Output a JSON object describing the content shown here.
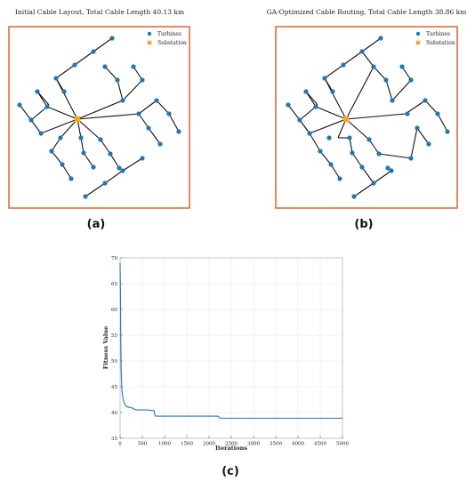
{
  "panels": {
    "a": {
      "label": "(a)",
      "title": "Initial Cable Layout, Total Cable Length 40.13 km",
      "legend": [
        "Turbines",
        "Substation"
      ]
    },
    "b": {
      "label": "(b)",
      "title": "GA-Optimized Cable Routing, Total Cable Length 38.86 km",
      "legend": [
        "Turbines",
        "Substation"
      ]
    },
    "c": {
      "label": "(c)",
      "xlabel": "Iterations",
      "ylabel": "Fitness Value"
    }
  },
  "colors": {
    "turbine": "#1f77b4",
    "substation": "#f5a623",
    "cable": "#111111",
    "frame": "#e2622f",
    "line": "#1f77b4",
    "grid": "#e6e6e6"
  },
  "chart_data": [
    {
      "type": "scatter",
      "title": "Initial Cable Layout, Total Cable Length 40.13 km",
      "legend_position": "top-right",
      "series": [
        {
          "name": "Turbines",
          "points": [
            [
              126,
              43
            ],
            [
              105,
              58
            ],
            [
              84,
              73
            ],
            [
              63,
              88
            ],
            [
              72,
              103
            ],
            [
              118,
              75
            ],
            [
              132,
              90
            ],
            [
              138,
              113
            ],
            [
              150,
              75
            ],
            [
              160,
              90
            ],
            [
              42,
              103
            ],
            [
              22,
              118
            ],
            [
              53,
              120
            ],
            [
              35,
              135
            ],
            [
              46,
              150
            ],
            [
              68,
              155
            ],
            [
              58,
              170
            ],
            [
              70,
              185
            ],
            [
              80,
              201
            ],
            [
              91,
              155
            ],
            [
              94,
              172
            ],
            [
              105,
              188
            ],
            [
              113,
              157
            ],
            [
              124,
              173
            ],
            [
              134,
              189
            ],
            [
              176,
              113
            ],
            [
              190,
              128
            ],
            [
              201,
              148
            ],
            [
              156,
              128
            ],
            [
              167,
              144
            ],
            [
              180,
              162
            ],
            [
              160,
              178
            ],
            [
              138,
              192
            ],
            [
              118,
              206
            ],
            [
              96,
              221
            ]
          ]
        },
        {
          "name": "Substation",
          "points": [
            [
              87,
              134
            ]
          ]
        }
      ],
      "edges": [
        [
          [
            87,
            134
          ],
          [
            63,
            88
          ]
        ],
        [
          [
            63,
            88
          ],
          [
            84,
            73
          ]
        ],
        [
          [
            84,
            73
          ],
          [
            105,
            58
          ]
        ],
        [
          [
            105,
            58
          ],
          [
            126,
            43
          ]
        ],
        [
          [
            63,
            88
          ],
          [
            72,
            103
          ]
        ],
        [
          [
            87,
            134
          ],
          [
            138,
            113
          ]
        ],
        [
          [
            138,
            113
          ],
          [
            132,
            90
          ]
        ],
        [
          [
            132,
            90
          ],
          [
            118,
            75
          ]
        ],
        [
          [
            138,
            113
          ],
          [
            160,
            90
          ]
        ],
        [
          [
            160,
            90
          ],
          [
            150,
            75
          ]
        ],
        [
          [
            87,
            134
          ],
          [
            53,
            120
          ]
        ],
        [
          [
            53,
            120
          ],
          [
            42,
            103
          ]
        ],
        [
          [
            42,
            103
          ],
          [
            55,
            118
          ]
        ],
        [
          [
            53,
            120
          ],
          [
            35,
            135
          ]
        ],
        [
          [
            35,
            135
          ],
          [
            22,
            118
          ]
        ],
        [
          [
            35,
            135
          ],
          [
            46,
            150
          ]
        ],
        [
          [
            46,
            150
          ],
          [
            87,
            134
          ]
        ],
        [
          [
            87,
            134
          ],
          [
            68,
            155
          ]
        ],
        [
          [
            68,
            155
          ],
          [
            58,
            170
          ]
        ],
        [
          [
            58,
            170
          ],
          [
            70,
            185
          ]
        ],
        [
          [
            70,
            185
          ],
          [
            80,
            201
          ]
        ],
        [
          [
            87,
            134
          ],
          [
            91,
            155
          ]
        ],
        [
          [
            91,
            155
          ],
          [
            94,
            172
          ]
        ],
        [
          [
            94,
            172
          ],
          [
            105,
            188
          ]
        ],
        [
          [
            87,
            134
          ],
          [
            113,
            157
          ]
        ],
        [
          [
            113,
            157
          ],
          [
            124,
            173
          ]
        ],
        [
          [
            124,
            173
          ],
          [
            134,
            189
          ]
        ],
        [
          [
            87,
            134
          ],
          [
            156,
            128
          ]
        ],
        [
          [
            156,
            128
          ],
          [
            176,
            113
          ]
        ],
        [
          [
            176,
            113
          ],
          [
            190,
            128
          ]
        ],
        [
          [
            190,
            128
          ],
          [
            201,
            148
          ]
        ],
        [
          [
            156,
            128
          ],
          [
            167,
            144
          ]
        ],
        [
          [
            167,
            144
          ],
          [
            180,
            162
          ]
        ],
        [
          [
            160,
            178
          ],
          [
            138,
            192
          ]
        ],
        [
          [
            138,
            192
          ],
          [
            118,
            206
          ]
        ],
        [
          [
            118,
            206
          ],
          [
            96,
            221
          ]
        ]
      ]
    },
    {
      "type": "scatter",
      "title": "GA-Optimized Cable Routing, Total Cable Length 38.86 km",
      "legend_position": "top-right",
      "series": [
        {
          "name": "Turbines",
          "points": [
            [
              428,
              43
            ],
            [
              407,
              58
            ],
            [
              386,
              73
            ],
            [
              365,
              88
            ],
            [
              374,
              103
            ],
            [
              420,
              75
            ],
            [
              434,
              90
            ],
            [
              441,
              113
            ],
            [
              452,
              75
            ],
            [
              462,
              90
            ],
            [
              344,
              103
            ],
            [
              324,
              118
            ],
            [
              355,
              120
            ],
            [
              337,
              135
            ],
            [
              348,
              150
            ],
            [
              370,
              155
            ],
            [
              360,
              170
            ],
            [
              372,
              185
            ],
            [
              382,
              201
            ],
            [
              393,
              155
            ],
            [
              396,
              172
            ],
            [
              407,
              188
            ],
            [
              415,
              157
            ],
            [
              426,
              173
            ],
            [
              436,
              189
            ],
            [
              478,
              113
            ],
            [
              492,
              128
            ],
            [
              503,
              148
            ],
            [
              458,
              128
            ],
            [
              469,
              144
            ],
            [
              482,
              162
            ],
            [
              462,
              178
            ],
            [
              440,
              192
            ],
            [
              420,
              206
            ],
            [
              398,
              221
            ]
          ]
        },
        {
          "name": "Substation",
          "points": [
            [
              389,
              134
            ]
          ]
        }
      ],
      "edges": [
        [
          [
            389,
            134
          ],
          [
            365,
            88
          ]
        ],
        [
          [
            365,
            88
          ],
          [
            386,
            73
          ]
        ],
        [
          [
            386,
            73
          ],
          [
            407,
            58
          ]
        ],
        [
          [
            407,
            58
          ],
          [
            428,
            43
          ]
        ],
        [
          [
            365,
            88
          ],
          [
            374,
            103
          ]
        ],
        [
          [
            389,
            134
          ],
          [
            420,
            75
          ]
        ],
        [
          [
            420,
            75
          ],
          [
            407,
            58
          ]
        ],
        [
          [
            420,
            75
          ],
          [
            434,
            90
          ]
        ],
        [
          [
            434,
            90
          ],
          [
            441,
            113
          ]
        ],
        [
          [
            441,
            113
          ],
          [
            462,
            90
          ]
        ],
        [
          [
            462,
            90
          ],
          [
            452,
            75
          ]
        ],
        [
          [
            389,
            134
          ],
          [
            355,
            120
          ]
        ],
        [
          [
            355,
            120
          ],
          [
            344,
            103
          ]
        ],
        [
          [
            344,
            103
          ],
          [
            357,
            118
          ]
        ],
        [
          [
            355,
            120
          ],
          [
            337,
            135
          ]
        ],
        [
          [
            337,
            135
          ],
          [
            324,
            118
          ]
        ],
        [
          [
            337,
            135
          ],
          [
            348,
            150
          ]
        ],
        [
          [
            389,
            134
          ],
          [
            348,
            150
          ]
        ],
        [
          [
            348,
            150
          ],
          [
            360,
            170
          ]
        ],
        [
          [
            360,
            170
          ],
          [
            372,
            185
          ]
        ],
        [
          [
            372,
            185
          ],
          [
            382,
            201
          ]
        ],
        [
          [
            389,
            134
          ],
          [
            380,
            155
          ]
        ],
        [
          [
            380,
            155
          ],
          [
            393,
            155
          ]
        ],
        [
          [
            393,
            155
          ],
          [
            396,
            172
          ]
        ],
        [
          [
            396,
            172
          ],
          [
            407,
            188
          ]
        ],
        [
          [
            407,
            188
          ],
          [
            420,
            206
          ]
        ],
        [
          [
            389,
            134
          ],
          [
            415,
            157
          ]
        ],
        [
          [
            415,
            157
          ],
          [
            426,
            173
          ]
        ],
        [
          [
            426,
            173
          ],
          [
            462,
            178
          ]
        ],
        [
          [
            462,
            178
          ],
          [
            469,
            144
          ]
        ],
        [
          [
            469,
            144
          ],
          [
            482,
            162
          ]
        ],
        [
          [
            389,
            134
          ],
          [
            456,
            128
          ]
        ],
        [
          [
            456,
            128
          ],
          [
            478,
            113
          ]
        ],
        [
          [
            478,
            113
          ],
          [
            492,
            128
          ]
        ],
        [
          [
            492,
            128
          ],
          [
            503,
            148
          ]
        ],
        [
          [
            436,
            189
          ],
          [
            440,
            192
          ]
        ],
        [
          [
            440,
            192
          ],
          [
            420,
            206
          ]
        ],
        [
          [
            420,
            206
          ],
          [
            398,
            221
          ]
        ]
      ]
    },
    {
      "type": "line",
      "xlabel": "Iterations",
      "ylabel": "Fitness Value",
      "xlim": [
        0,
        5000
      ],
      "ylim": [
        35,
        70
      ],
      "xticks": [
        0,
        500,
        1000,
        1500,
        2000,
        2500,
        3000,
        3500,
        4000,
        4500,
        5000
      ],
      "yticks": [
        35,
        40,
        45,
        50,
        55,
        60,
        65,
        70
      ],
      "grid": true,
      "series": [
        {
          "x": [
            0,
            8,
            15,
            25,
            40,
            60,
            80,
            100,
            130,
            160,
            200,
            260,
            300,
            320,
            400,
            500,
            600,
            700,
            760,
            780,
            800,
            900,
            1000,
            1500,
            2000,
            2200,
            2250,
            2300,
            2500,
            3000,
            3500,
            4000,
            4500,
            5000
          ],
          "y": [
            69,
            63,
            55,
            48,
            44.5,
            43,
            42.2,
            41.7,
            41.3,
            41.1,
            41.0,
            40.9,
            40.8,
            40.6,
            40.5,
            40.5,
            40.5,
            40.4,
            40.4,
            39.6,
            39.3,
            39.3,
            39.3,
            39.3,
            39.3,
            39.3,
            38.9,
            38.9,
            38.9,
            38.9,
            38.9,
            38.9,
            38.9,
            38.9
          ]
        }
      ]
    }
  ]
}
